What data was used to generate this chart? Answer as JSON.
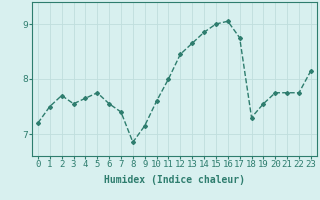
{
  "xlabel": "Humidex (Indice chaleur)",
  "ylabel": "",
  "x": [
    0,
    1,
    2,
    3,
    4,
    5,
    6,
    7,
    8,
    9,
    10,
    11,
    12,
    13,
    14,
    15,
    16,
    17,
    18,
    19,
    20,
    21,
    22,
    23
  ],
  "y": [
    7.2,
    7.5,
    7.7,
    7.55,
    7.65,
    7.75,
    7.55,
    7.4,
    6.85,
    7.15,
    7.6,
    8.0,
    8.45,
    8.65,
    8.85,
    9.0,
    9.05,
    8.75,
    7.3,
    7.55,
    7.75,
    7.75,
    7.75,
    8.15
  ],
  "line_color": "#2e7d6e",
  "marker": "D",
  "marker_size": 2,
  "line_width": 1.0,
  "bg_color": "#d8f0ef",
  "grid_color": "#c0dedd",
  "tick_color": "#2e7d6e",
  "label_color": "#2e7d6e",
  "ylim": [
    6.6,
    9.4
  ],
  "yticks": [
    7,
    8,
    9
  ],
  "xlim": [
    -0.5,
    23.5
  ],
  "title_fontsize": 7,
  "label_fontsize": 7,
  "tick_fontsize": 6.5
}
